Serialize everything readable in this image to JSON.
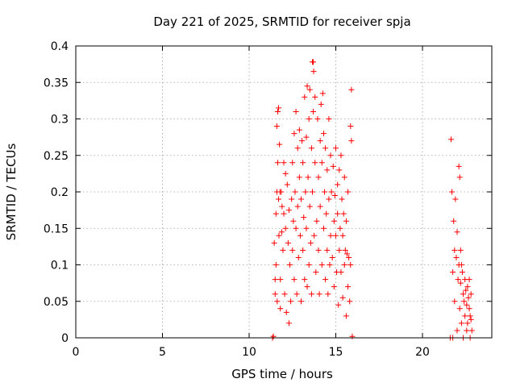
{
  "chart_data": {
    "type": "scatter",
    "title": "Day 221 of 2025, SRMTID for receiver spja",
    "xlabel": "GPS time / hours",
    "ylabel": "SRMTID / TECUs",
    "xlim": [
      0,
      24
    ],
    "ylim": [
      0,
      0.4
    ],
    "x_ticks": [
      0,
      5,
      10,
      15,
      20
    ],
    "y_ticks": [
      0,
      0.05,
      0.1,
      0.15,
      0.2,
      0.25,
      0.3,
      0.35,
      0.4
    ],
    "grid": true,
    "marker": "+",
    "color": "#ff0000",
    "series": [
      {
        "points": [
          [
            11.35,
            0.0
          ],
          [
            11.4,
            0.002
          ],
          [
            11.45,
            0.13
          ],
          [
            11.5,
            0.08
          ],
          [
            11.5,
            0.06
          ],
          [
            11.55,
            0.17
          ],
          [
            11.55,
            0.1
          ],
          [
            11.6,
            0.29
          ],
          [
            11.6,
            0.2
          ],
          [
            11.62,
            0.05
          ],
          [
            11.65,
            0.31
          ],
          [
            11.65,
            0.24
          ],
          [
            11.7,
            0.315
          ],
          [
            11.7,
            0.19
          ],
          [
            11.72,
            0.14
          ],
          [
            11.75,
            0.265
          ],
          [
            11.78,
            0.2
          ],
          [
            11.8,
            0.08
          ],
          [
            11.8,
            0.04
          ],
          [
            11.85,
            0.2
          ],
          [
            11.88,
            0.145
          ],
          [
            11.9,
            0.18
          ],
          [
            11.95,
            0.12
          ],
          [
            12.0,
            0.24
          ],
          [
            12.0,
            0.17
          ],
          [
            12.05,
            0.06
          ],
          [
            12.1,
            0.225
          ],
          [
            12.1,
            0.15
          ],
          [
            12.15,
            0.035
          ],
          [
            12.2,
            0.21
          ],
          [
            12.25,
            0.13
          ],
          [
            12.3,
            0.02
          ],
          [
            12.3,
            0.175
          ],
          [
            12.35,
            0.1
          ],
          [
            12.4,
            0.05
          ],
          [
            12.45,
            0.19
          ],
          [
            12.5,
            0.24
          ],
          [
            12.5,
            0.12
          ],
          [
            12.55,
            0.16
          ],
          [
            12.6,
            0.28
          ],
          [
            12.6,
            0.08
          ],
          [
            12.65,
            0.2
          ],
          [
            12.7,
            0.31
          ],
          [
            12.7,
            0.15
          ],
          [
            12.75,
            0.06
          ],
          [
            12.8,
            0.26
          ],
          [
            12.8,
            0.18
          ],
          [
            12.85,
            0.11
          ],
          [
            12.9,
            0.285
          ],
          [
            12.9,
            0.22
          ],
          [
            12.95,
            0.14
          ],
          [
            13.0,
            0.05
          ],
          [
            13.0,
            0.19
          ],
          [
            13.05,
            0.27
          ],
          [
            13.1,
            0.24
          ],
          [
            13.1,
            0.12
          ],
          [
            13.15,
            0.165
          ],
          [
            13.2,
            0.33
          ],
          [
            13.2,
            0.08
          ],
          [
            13.25,
            0.2
          ],
          [
            13.3,
            0.275
          ],
          [
            13.3,
            0.15
          ],
          [
            13.35,
            0.345
          ],
          [
            13.35,
            0.07
          ],
          [
            13.4,
            0.22
          ],
          [
            13.45,
            0.3
          ],
          [
            13.45,
            0.1
          ],
          [
            13.5,
            0.34
          ],
          [
            13.5,
            0.18
          ],
          [
            13.55,
            0.13
          ],
          [
            13.6,
            0.26
          ],
          [
            13.6,
            0.06
          ],
          [
            13.65,
            0.378
          ],
          [
            13.65,
            0.2
          ],
          [
            13.7,
            0.378
          ],
          [
            13.7,
            0.31
          ],
          [
            13.72,
            0.365
          ],
          [
            13.75,
            0.14
          ],
          [
            13.8,
            0.33
          ],
          [
            13.8,
            0.24
          ],
          [
            13.85,
            0.09
          ],
          [
            13.9,
            0.16
          ],
          [
            13.95,
            0.3
          ],
          [
            14.0,
            0.22
          ],
          [
            14.0,
            0.12
          ],
          [
            14.05,
            0.06
          ],
          [
            14.1,
            0.27
          ],
          [
            14.1,
            0.18
          ],
          [
            14.15,
            0.32
          ],
          [
            14.2,
            0.24
          ],
          [
            14.2,
            0.1
          ],
          [
            14.25,
            0.335
          ],
          [
            14.3,
            0.15
          ],
          [
            14.3,
            0.28
          ],
          [
            14.35,
            0.2
          ],
          [
            14.4,
            0.08
          ],
          [
            14.4,
            0.26
          ],
          [
            14.45,
            0.17
          ],
          [
            14.5,
            0.12
          ],
          [
            14.5,
            0.23
          ],
          [
            14.55,
            0.06
          ],
          [
            14.6,
            0.3
          ],
          [
            14.6,
            0.19
          ],
          [
            14.65,
            0.1
          ],
          [
            14.7,
            0.25
          ],
          [
            14.7,
            0.14
          ],
          [
            14.75,
            0.2
          ],
          [
            14.8,
            0.11
          ],
          [
            14.85,
            0.235
          ],
          [
            14.9,
            0.16
          ],
          [
            14.9,
            0.07
          ],
          [
            14.95,
            0.195
          ],
          [
            15.0,
            0.26
          ],
          [
            15.0,
            0.14
          ],
          [
            15.05,
            0.09
          ],
          [
            15.1,
            0.21
          ],
          [
            15.1,
            0.17
          ],
          [
            15.15,
            0.045
          ],
          [
            15.2,
            0.23
          ],
          [
            15.2,
            0.12
          ],
          [
            15.25,
            0.15
          ],
          [
            15.3,
            0.25
          ],
          [
            15.3,
            0.09
          ],
          [
            15.35,
            0.19
          ],
          [
            15.4,
            0.14
          ],
          [
            15.4,
            0.055
          ],
          [
            15.45,
            0.17
          ],
          [
            15.5,
            0.22
          ],
          [
            15.5,
            0.1
          ],
          [
            15.55,
            0.12
          ],
          [
            15.6,
            0.16
          ],
          [
            15.6,
            0.03
          ],
          [
            15.65,
            0.115
          ],
          [
            15.7,
            0.2
          ],
          [
            15.7,
            0.07
          ],
          [
            15.75,
            0.11
          ],
          [
            15.8,
            0.05
          ],
          [
            15.85,
            0.29
          ],
          [
            15.85,
            0.1
          ],
          [
            15.9,
            0.34
          ],
          [
            15.9,
            0.27
          ],
          [
            15.95,
            0.002
          ],
          [
            21.6,
            0.0
          ],
          [
            21.65,
            0.272
          ],
          [
            21.7,
            0.2
          ],
          [
            21.75,
            0.09
          ],
          [
            21.75,
            0.0
          ],
          [
            21.8,
            0.16
          ],
          [
            21.85,
            0.12
          ],
          [
            21.85,
            0.05
          ],
          [
            21.9,
            0.19
          ],
          [
            21.95,
            0.11
          ],
          [
            22.0,
            0.145
          ],
          [
            22.0,
            0.01
          ],
          [
            22.05,
            0.08
          ],
          [
            22.1,
            0.235
          ],
          [
            22.1,
            0.1
          ],
          [
            22.15,
            0.22
          ],
          [
            22.15,
            0.04
          ],
          [
            22.2,
            0.12
          ],
          [
            22.2,
            0.075
          ],
          [
            22.25,
            0.1
          ],
          [
            22.25,
            0.02
          ],
          [
            22.3,
            0.09
          ],
          [
            22.35,
            0.06
          ],
          [
            22.35,
            0.0
          ],
          [
            22.4,
            0.05
          ],
          [
            22.45,
            0.08
          ],
          [
            22.45,
            0.03
          ],
          [
            22.5,
            0.065
          ],
          [
            22.55,
            0.045
          ],
          [
            22.55,
            0.01
          ],
          [
            22.6,
            0.07
          ],
          [
            22.6,
            0.02
          ],
          [
            22.65,
            0.055
          ],
          [
            22.7,
            0.08
          ],
          [
            22.7,
            0.04
          ],
          [
            22.75,
            0.03
          ],
          [
            22.75,
            0.0
          ],
          [
            22.8,
            0.06
          ],
          [
            22.8,
            0.025
          ],
          [
            22.85,
            0.01
          ]
        ]
      }
    ]
  }
}
